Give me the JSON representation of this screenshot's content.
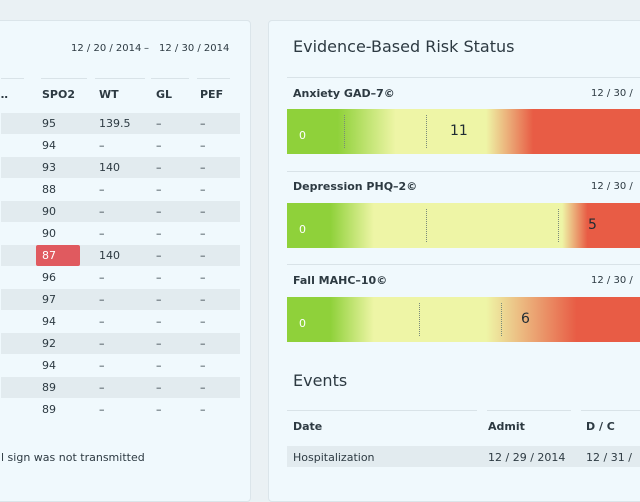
{
  "vitals": {
    "date_from": "12 / 20 / 2014",
    "date_sep": "–",
    "date_to": "12 / 30 / 2014",
    "partial_header": "…",
    "headers": [
      "SPO2",
      "WT",
      "GL",
      "PEF"
    ],
    "rows": [
      {
        "spo2": "95",
        "wt": "139.5",
        "gl": "–",
        "pef": "–"
      },
      {
        "spo2": "94",
        "wt": "–",
        "gl": "–",
        "pef": "–"
      },
      {
        "spo2": "93",
        "wt": "140",
        "gl": "–",
        "pef": "–"
      },
      {
        "spo2": "88",
        "wt": "–",
        "gl": "–",
        "pef": "–"
      },
      {
        "spo2": "90",
        "wt": "–",
        "gl": "–",
        "pef": "–"
      },
      {
        "spo2": "90",
        "wt": "–",
        "gl": "–",
        "pef": "–"
      },
      {
        "spo2": "87",
        "wt": "140",
        "gl": "–",
        "pef": "–",
        "alert": true
      },
      {
        "spo2": "96",
        "wt": "–",
        "gl": "–",
        "pef": "–"
      },
      {
        "spo2": "97",
        "wt": "–",
        "gl": "–",
        "pef": "–"
      },
      {
        "spo2": "94",
        "wt": "–",
        "gl": "–",
        "pef": "–"
      },
      {
        "spo2": "92",
        "wt": "–",
        "gl": "–",
        "pef": "–"
      },
      {
        "spo2": "94",
        "wt": "–",
        "gl": "–",
        "pef": "–"
      },
      {
        "spo2": "89",
        "wt": "–",
        "gl": "–",
        "pef": "–"
      },
      {
        "spo2": "89",
        "wt": "–",
        "gl": "–",
        "pef": "–"
      }
    ],
    "footnote": "l sign was not transmitted",
    "alert_color": "#e05a5f"
  },
  "risk": {
    "title": "Evidence-Based Risk Status",
    "items": [
      {
        "label": "Anxiety GAD–7©",
        "date": "12 / 30 /",
        "min": "0",
        "score": "11"
      },
      {
        "label": "Depression PHQ–2©",
        "date": "12 / 30 /",
        "min": "0",
        "score": "5"
      },
      {
        "label": "Fall MAHC–10©",
        "date": "12 / 30 /",
        "min": "0",
        "score": "6"
      }
    ],
    "colors": {
      "low": "#8fd13a",
      "mid": "#eef5a6",
      "high": "#e85c45"
    }
  },
  "events": {
    "title": "Events",
    "headers": [
      "Date",
      "Admit",
      "D / C"
    ],
    "rows": [
      {
        "date": "Hospitalization",
        "admit": "12 / 29 / 2014",
        "dc": "12 / 31 /"
      }
    ]
  }
}
